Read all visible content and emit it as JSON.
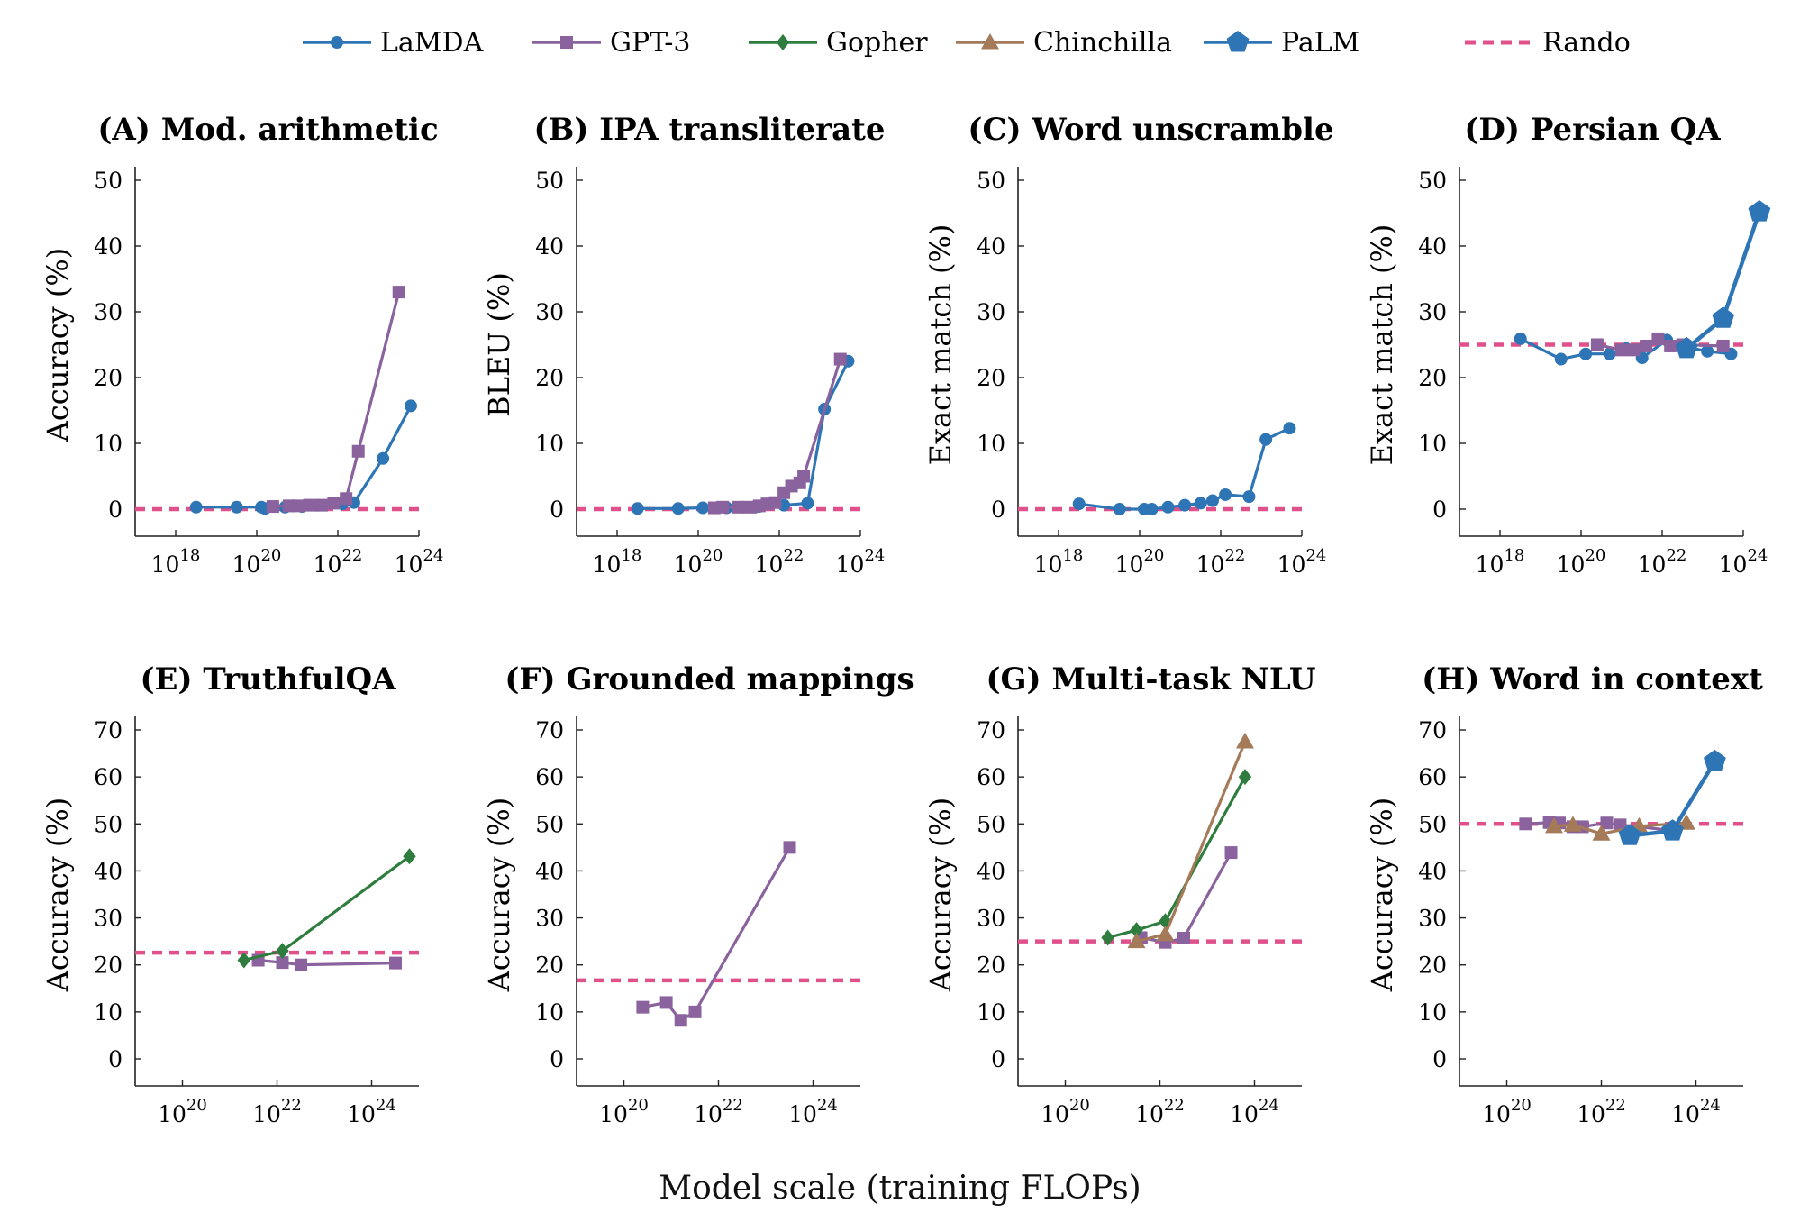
{
  "legend": [
    {
      "name": "LaMDA",
      "color": "#2e75b6",
      "marker": "circle"
    },
    {
      "name": "GPT-3",
      "color": "#8a629d",
      "marker": "square"
    },
    {
      "name": "Gopher",
      "color": "#2e7d3e",
      "marker": "diamond"
    },
    {
      "name": "Chinchilla",
      "color": "#a47a58",
      "marker": "triangle"
    },
    {
      "name": "PaLM",
      "color": "#2e75b6",
      "marker": "pentagon"
    },
    {
      "name": "Random",
      "color": "#e0508a",
      "marker": "dash"
    }
  ],
  "xlabel": "Model scale (training FLOPs)",
  "chart_data": [
    {
      "type": "line",
      "title": "(A) Mod. arithmetic",
      "ylabel": "Accuracy (%)",
      "xscale": "log",
      "xlim": [
        1e+17,
        1e+24
      ],
      "xticks": [
        18,
        20,
        22,
        24
      ],
      "ylim": [
        0,
        50
      ],
      "yticks": [
        0,
        10,
        20,
        30,
        40,
        50
      ],
      "random": 0,
      "series": [
        {
          "name": "LaMDA",
          "x": [
            3.2e+18,
            3.2e+19,
            1.3e+20,
            1.6e+20,
            5e+20,
            1.3e+21,
            3.2e+21,
            1.3e+22,
            2.5e+22,
            1.3e+23,
            6.3e+23
          ],
          "y": [
            0.3,
            0.3,
            0.3,
            0.1,
            0.3,
            0.4,
            0.6,
            0.8,
            1.0,
            7.7,
            15.7
          ]
        },
        {
          "name": "GPT-3",
          "x": [
            2.5e+20,
            6.3e+20,
            1e+21,
            2e+21,
            4e+21,
            7.9e+21,
            1.6e+22,
            3.2e+22,
            3.2e+23
          ],
          "y": [
            0.4,
            0.5,
            0.5,
            0.6,
            0.6,
            0.9,
            1.6,
            8.8,
            33.0
          ]
        }
      ]
    },
    {
      "type": "line",
      "title": "(B) IPA transliterate",
      "ylabel": "BLEU (%)",
      "xscale": "log",
      "xlim": [
        1e+17,
        1e+24
      ],
      "xticks": [
        18,
        20,
        22,
        24
      ],
      "ylim": [
        0,
        50
      ],
      "yticks": [
        0,
        10,
        20,
        30,
        40,
        50
      ],
      "random": 0,
      "series": [
        {
          "name": "LaMDA",
          "x": [
            3.2e+18,
            3.2e+19,
            1.3e+20,
            5e+20,
            1.3e+21,
            3.2e+21,
            1.3e+22,
            5e+22,
            1.3e+23,
            5e+23
          ],
          "y": [
            0.1,
            0.1,
            0.2,
            0.2,
            0.3,
            0.4,
            0.6,
            0.9,
            15.2,
            22.5
          ]
        },
        {
          "name": "GPT-3",
          "x": [
            2.5e+20,
            4e+20,
            1e+21,
            2e+21,
            3.2e+21,
            5e+21,
            7.9e+21,
            1.3e+22,
            2e+22,
            3.2e+22,
            4e+22,
            3.2e+23
          ],
          "y": [
            0.2,
            0.3,
            0.3,
            0.3,
            0.5,
            0.8,
            1.0,
            2.5,
            3.5,
            4.0,
            5.0,
            22.8
          ]
        }
      ]
    },
    {
      "type": "line",
      "title": "(C) Word unscramble",
      "ylabel": "Exact match (%)",
      "xscale": "log",
      "xlim": [
        1e+17,
        1e+24
      ],
      "xticks": [
        18,
        20,
        22,
        24
      ],
      "ylim": [
        0,
        50
      ],
      "yticks": [
        0,
        10,
        20,
        30,
        40,
        50
      ],
      "random": 0,
      "series": [
        {
          "name": "LaMDA",
          "x": [
            3.2e+18,
            3.2e+19,
            1.3e+20,
            2e+20,
            5e+20,
            1.3e+21,
            3.2e+21,
            6.3e+21,
            1.3e+22,
            5e+22,
            1.3e+23,
            5e+23
          ],
          "y": [
            0.8,
            0.0,
            0.0,
            0.0,
            0.3,
            0.6,
            0.9,
            1.3,
            2.2,
            1.9,
            10.6,
            12.3
          ]
        }
      ]
    },
    {
      "type": "line",
      "title": "(D) Persian QA",
      "ylabel": "Exact match (%)",
      "xscale": "log",
      "xlim": [
        1e+17,
        1e+24
      ],
      "xticks": [
        18,
        20,
        22,
        24
      ],
      "ylim": [
        0,
        50
      ],
      "yticks": [
        0,
        10,
        20,
        30,
        40,
        50
      ],
      "random": 25,
      "series": [
        {
          "name": "LaMDA",
          "x": [
            3.2e+18,
            3.2e+19,
            1.3e+20,
            5e+20,
            1.3e+21,
            3.2e+21,
            1.3e+22,
            5e+22,
            1.3e+23,
            5e+23
          ],
          "y": [
            25.9,
            22.8,
            23.6,
            23.6,
            24.4,
            23.0,
            25.7,
            24.5,
            24.0,
            23.6
          ]
        },
        {
          "name": "GPT-3",
          "x": [
            2.5e+20,
            1e+21,
            2e+21,
            4e+21,
            7.9e+21,
            1.6e+22,
            3.2e+22,
            3.2e+23
          ],
          "y": [
            25.0,
            24.2,
            24.2,
            24.8,
            25.9,
            24.8,
            25.0,
            24.8
          ]
        },
        {
          "name": "PaLM",
          "x": [
            4e+22,
            3.2e+23,
            2.5e+24
          ],
          "y": [
            24.4,
            29.0,
            45.2
          ]
        }
      ]
    },
    {
      "type": "line",
      "title": "(E) TruthfulQA",
      "ylabel": "Accuracy (%)",
      "xscale": "log",
      "xlim": [
        1e+19,
        1e+25
      ],
      "xticks": [
        20,
        22,
        24
      ],
      "ylim": [
        0,
        70
      ],
      "yticks": [
        0,
        10,
        20,
        30,
        40,
        50,
        60,
        70
      ],
      "random": 22.6,
      "series": [
        {
          "name": "GPT-3",
          "x": [
            4e+21,
            1.3e+22,
            3.2e+22,
            3.2e+24
          ],
          "y": [
            21.0,
            20.5,
            20.0,
            20.4
          ]
        },
        {
          "name": "Gopher",
          "x": [
            2e+21,
            1.3e+22,
            6.3e+24
          ],
          "y": [
            21.0,
            23.0,
            43.1
          ]
        }
      ]
    },
    {
      "type": "line",
      "title": "(F) Grounded mappings",
      "ylabel": "Accuracy (%)",
      "xscale": "log",
      "xlim": [
        1e+19,
        1e+25
      ],
      "xticks": [
        20,
        22,
        24
      ],
      "ylim": [
        0,
        70
      ],
      "yticks": [
        0,
        10,
        20,
        30,
        40,
        50,
        60,
        70
      ],
      "random": 16.7,
      "series": [
        {
          "name": "GPT-3",
          "x": [
            2.5e+20,
            7.9e+20,
            1.6e+21,
            3.2e+21,
            3.2e+23
          ],
          "y": [
            11.0,
            12.0,
            8.2,
            10.0,
            45.0
          ]
        }
      ]
    },
    {
      "type": "line",
      "title": "(G) Multi-task NLU",
      "ylabel": "Accuracy (%)",
      "xscale": "log",
      "xlim": [
        1e+19,
        1e+25
      ],
      "xticks": [
        20,
        22,
        24
      ],
      "ylim": [
        0,
        70
      ],
      "yticks": [
        0,
        10,
        20,
        30,
        40,
        50,
        60,
        70
      ],
      "random": 25,
      "series": [
        {
          "name": "GPT-3",
          "x": [
            4e+21,
            1.3e+22,
            3.2e+22,
            3.2e+23
          ],
          "y": [
            25.8,
            24.8,
            25.7,
            43.9
          ]
        },
        {
          "name": "Gopher",
          "x": [
            7.9e+20,
            3.2e+21,
            1.3e+22,
            6.3e+23
          ],
          "y": [
            25.8,
            27.4,
            29.3,
            60.0
          ]
        },
        {
          "name": "Chinchilla",
          "x": [
            3.2e+21,
            1.3e+22,
            6.3e+23
          ],
          "y": [
            25.0,
            26.5,
            67.5
          ]
        }
      ]
    },
    {
      "type": "line",
      "title": "(H) Word in context",
      "ylabel": "Accuracy (%)",
      "xscale": "log",
      "xlim": [
        1e+19,
        1e+25
      ],
      "xticks": [
        20,
        22,
        24
      ],
      "ylim": [
        0,
        70
      ],
      "yticks": [
        0,
        10,
        20,
        30,
        40,
        50,
        60,
        70
      ],
      "random": 50,
      "series": [
        {
          "name": "GPT-3",
          "x": [
            2.5e+20,
            7.9e+20,
            1.3e+21,
            2.5e+21,
            4e+21,
            1.3e+22,
            2.5e+22,
            3.2e+23
          ],
          "y": [
            50.0,
            50.3,
            50.2,
            49.4,
            49.4,
            50.2,
            49.8,
            48.6
          ]
        },
        {
          "name": "Chinchilla",
          "x": [
            1e+21,
            2.5e+21,
            1e+22,
            6.3e+22,
            6.3e+23
          ],
          "y": [
            49.5,
            49.8,
            47.9,
            49.5,
            50.2
          ]
        },
        {
          "name": "PaLM",
          "x": [
            4e+22,
            3.2e+23,
            2.5e+24
          ],
          "y": [
            47.5,
            48.5,
            63.3
          ]
        }
      ]
    }
  ]
}
